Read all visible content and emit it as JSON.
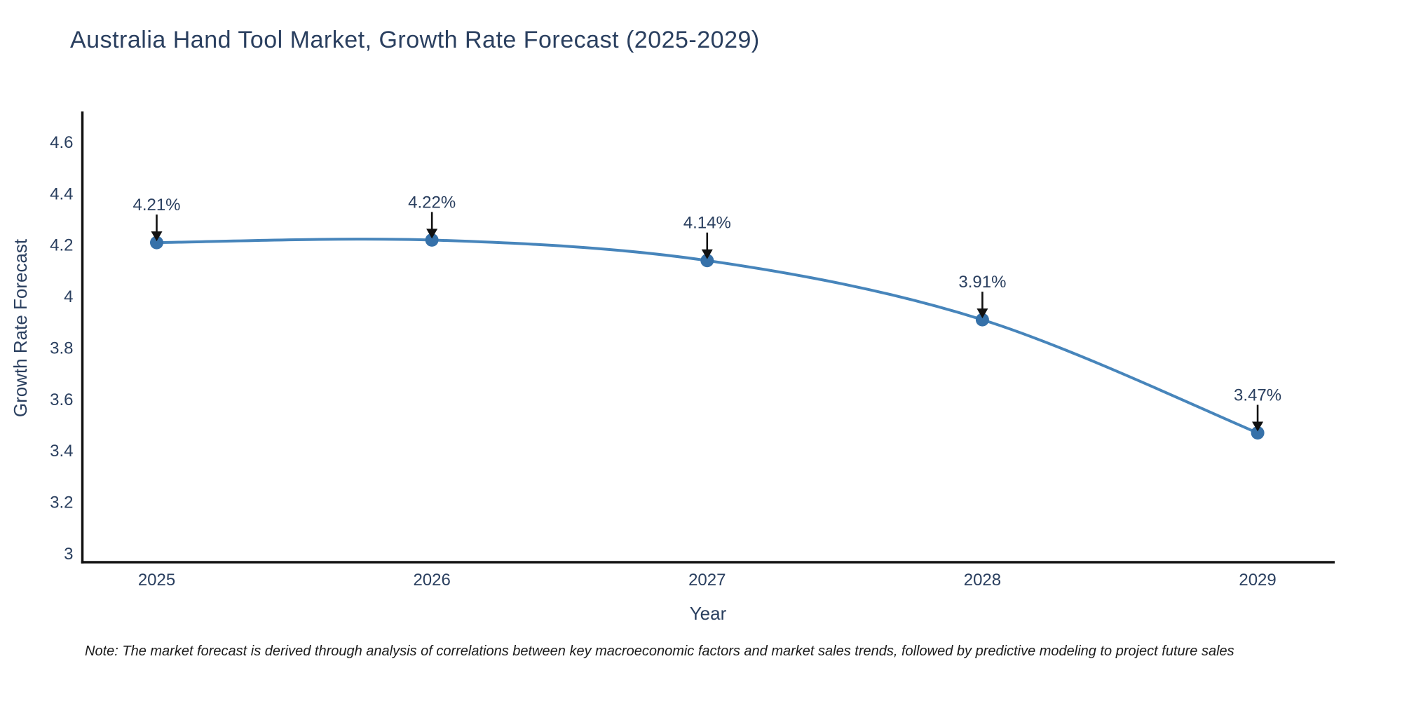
{
  "chart_data": {
    "type": "line",
    "curve": "spline",
    "title": "Australia Hand Tool Market, Growth Rate Forecast (2025-2029)",
    "xlabel": "Year",
    "ylabel": "Growth Rate Forecast",
    "note": "Note: The market forecast is derived through analysis of correlations between key macroeconomic factors and market sales trends, followed by predictive modeling to project future sales",
    "x": [
      2025,
      2026,
      2027,
      2028,
      2029
    ],
    "series": [
      {
        "name": "Growth Rate Forecast",
        "values": [
          4.21,
          4.22,
          4.14,
          3.91,
          3.47
        ]
      }
    ],
    "point_labels": [
      "4.21%",
      "4.22%",
      "4.14%",
      "3.91%",
      "3.47%"
    ],
    "xticks": {
      "values": [
        2025,
        2026,
        2027,
        2028,
        2029
      ],
      "labels": [
        "2025",
        "2026",
        "2027",
        "2028",
        "2029"
      ]
    },
    "yticks": {
      "values": [
        3,
        3.2,
        3.4,
        3.6,
        3.8,
        4,
        4.2,
        4.4,
        4.6
      ],
      "labels": [
        "3",
        "3.2",
        "3.4",
        "3.6",
        "3.8",
        "4",
        "4.2",
        "4.4",
        "4.6"
      ]
    },
    "xlim": [
      2024.73,
      2029.28
    ],
    "ylim": [
      2.967,
      4.72
    ],
    "grid": false,
    "legend": "none",
    "colors": {
      "line": "#4785bb",
      "marker": "#3671a9",
      "axis": "#111111",
      "arrow": "#111111",
      "text": "#2a3f5f",
      "note_text": "#1c1c1c",
      "background": "#ffffff"
    }
  }
}
